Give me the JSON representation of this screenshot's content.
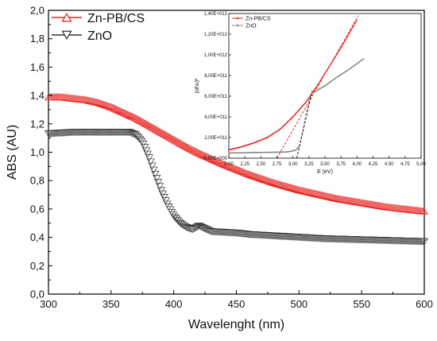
{
  "colors": {
    "zn_pb_cs": "#e8231f",
    "zno": "#333333",
    "axis": "#000000",
    "inset_dash_red": "#e8231f",
    "inset_dash_black": "#111111"
  },
  "chart_data": [
    {
      "type": "scatter",
      "role": "main",
      "xlabel": "Wavelenght (nm)",
      "ylabel": "ABS (AU)",
      "xlim": [
        300,
        600
      ],
      "ylim": [
        0.0,
        2.0
      ],
      "xticks": [
        "300",
        "350",
        "400",
        "450",
        "500",
        "550",
        "600"
      ],
      "yticks": [
        "0,0",
        "0,2",
        "0,4",
        "0,6",
        "0,8",
        "1,0",
        "1,2",
        "1,4",
        "1,6",
        "1,8",
        "2,0"
      ],
      "legend_position": "top-left",
      "series": [
        {
          "name": "Zn-PB/CS",
          "marker": "triangle-up",
          "color": "#e8231f",
          "x": [
            300,
            310,
            320,
            330,
            340,
            350,
            360,
            370,
            380,
            390,
            400,
            410,
            420,
            430,
            440,
            450,
            460,
            470,
            480,
            490,
            500,
            510,
            520,
            530,
            540,
            550,
            560,
            570,
            580,
            590,
            600
          ],
          "y": [
            1.39,
            1.39,
            1.38,
            1.37,
            1.35,
            1.32,
            1.28,
            1.24,
            1.19,
            1.14,
            1.09,
            1.04,
            0.995,
            0.955,
            0.915,
            0.88,
            0.845,
            0.815,
            0.785,
            0.76,
            0.735,
            0.715,
            0.695,
            0.675,
            0.66,
            0.645,
            0.63,
            0.615,
            0.605,
            0.595,
            0.585
          ]
        },
        {
          "name": "ZnO",
          "marker": "triangle-down",
          "color": "#333333",
          "x": [
            300,
            310,
            320,
            330,
            340,
            350,
            360,
            365,
            370,
            375,
            380,
            385,
            390,
            395,
            400,
            405,
            410,
            415,
            420,
            425,
            430,
            440,
            450,
            460,
            470,
            480,
            500,
            520,
            540,
            560,
            580,
            600
          ],
          "y": [
            1.13,
            1.135,
            1.14,
            1.14,
            1.14,
            1.14,
            1.14,
            1.14,
            1.12,
            1.07,
            0.97,
            0.85,
            0.73,
            0.63,
            0.55,
            0.5,
            0.47,
            0.455,
            0.48,
            0.46,
            0.44,
            0.435,
            0.43,
            0.42,
            0.415,
            0.41,
            0.4,
            0.39,
            0.385,
            0.38,
            0.375,
            0.37
          ]
        }
      ]
    },
    {
      "type": "line",
      "role": "inset",
      "xlabel": "E (eV)",
      "ylabel": "(αhυ)²",
      "xlim": [
        2.0,
        5.0
      ],
      "ylim": [
        0,
        1400000000000.0
      ],
      "xticks": [
        "2,00",
        "2,25",
        "2,50",
        "2,75",
        "3,00",
        "3,25",
        "3,50",
        "3,75",
        "4,00",
        "4,25",
        "4,50",
        "4,75",
        "5,00"
      ],
      "yticks": [
        "0,00E+000",
        "2,00E+011",
        "4,00E+011",
        "6,00E+011",
        "8,00E+011",
        "1,00E+012",
        "1,20E+012",
        "1,40E+012"
      ],
      "legend_position": "top-left",
      "series": [
        {
          "name": "Zn-PB/CS",
          "color": "#e8231f",
          "x": [
            2.0,
            2.2,
            2.4,
            2.6,
            2.8,
            3.0,
            3.2,
            3.3,
            3.4,
            3.6,
            3.8,
            4.0
          ],
          "y": [
            80000000000.0,
            110000000000.0,
            150000000000.0,
            200000000000.0,
            280000000000.0,
            400000000000.0,
            540000000000.0,
            630000000000.0,
            720000000000.0,
            920000000000.0,
            1120000000000.0,
            1340000000000.0
          ]
        },
        {
          "name": "ZnO",
          "color": "#888888",
          "x": [
            2.0,
            2.5,
            2.9,
            3.0,
            3.05,
            3.1,
            3.15,
            3.2,
            3.25,
            3.3,
            3.5,
            3.7,
            3.9,
            4.1
          ],
          "y": [
            50000000000.0,
            55000000000.0,
            60000000000.0,
            70000000000.0,
            80000000000.0,
            120000000000.0,
            250000000000.0,
            420000000000.0,
            560000000000.0,
            630000000000.0,
            700000000000.0,
            790000000000.0,
            870000000000.0,
            960000000000.0
          ]
        }
      ],
      "tangents": [
        {
          "color": "#e8231f",
          "x": [
            2.75,
            4.02
          ],
          "y": [
            0,
            1380000000000.0
          ]
        },
        {
          "color": "#111111",
          "x": [
            3.06,
            3.3
          ],
          "y": [
            0,
            650000000000.0
          ]
        }
      ]
    }
  ]
}
